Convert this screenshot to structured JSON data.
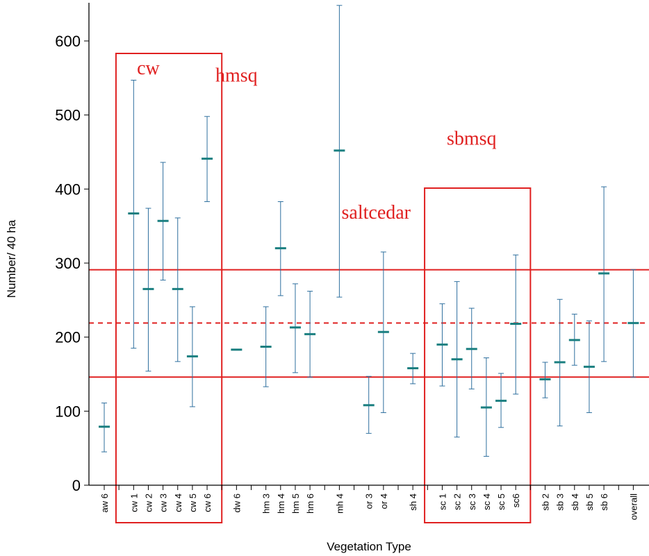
{
  "chart_data": {
    "type": "error-bar",
    "xlabel": "Vegetation Type",
    "ylabel": "Number/ 40 ha",
    "ylim": [
      0,
      650
    ],
    "yticks": [
      0,
      100,
      200,
      300,
      400,
      500,
      600
    ],
    "grid": false,
    "categories": [
      "aw 6",
      "cw 1",
      "cw 2",
      "cw 3",
      "cw 4",
      "cw 5",
      "cw 6",
      "dw 6",
      "hm 3",
      "hm 4",
      "hm 5",
      "hm 6",
      "mh 4",
      "or 3",
      "or 4",
      "sh 4",
      "sc 1",
      "sc 2",
      "sc 3",
      "sc 4",
      "sc 5",
      "sc6",
      "sb 2",
      "sb 3",
      "sb 4",
      "sb 5",
      "sb 6",
      "overall"
    ],
    "slots": [
      0,
      2,
      3,
      4,
      5,
      6,
      7,
      9,
      11,
      12,
      13,
      14,
      16,
      18,
      19,
      21,
      23,
      24,
      25,
      26,
      27,
      28,
      30,
      31,
      32,
      33,
      34,
      36
    ],
    "n_slots": 37,
    "mean": [
      79,
      367,
      265,
      357,
      265,
      174,
      441,
      183,
      187,
      320,
      213,
      204,
      452,
      108,
      207,
      158,
      190,
      170,
      184,
      105,
      114,
      218,
      143,
      166,
      196,
      160,
      286,
      219
    ],
    "lower": [
      45,
      185,
      154,
      277,
      167,
      106,
      383,
      null,
      133,
      256,
      152,
      146,
      254,
      70,
      98,
      137,
      134,
      65,
      130,
      39,
      78,
      123,
      118,
      80,
      162,
      98,
      167,
      146
    ],
    "upper": [
      111,
      547,
      374,
      436,
      361,
      241,
      498,
      null,
      241,
      383,
      272,
      262,
      648,
      147,
      315,
      178,
      245,
      275,
      239,
      172,
      151,
      311,
      166,
      251,
      231,
      222,
      403,
      291
    ],
    "reference_lines": {
      "mean": 219,
      "lower": 146,
      "upper": 291
    },
    "group_boxes": [
      {
        "label": "cw",
        "first": 1,
        "last": 6
      },
      {
        "label": "saltcedar",
        "first": 16,
        "last": 21
      }
    ],
    "group_labels": [
      {
        "text": "cw",
        "near": 3,
        "y": 555
      },
      {
        "text": "hmsq",
        "near": 9,
        "y": 545
      },
      {
        "text": "saltcedar",
        "near": 18.5,
        "y": 360
      },
      {
        "text": "sbmsq",
        "near": 25,
        "y": 460
      }
    ],
    "colors": {
      "error_bar": "#2e6f9e",
      "mean_marker": "#1a7f80",
      "reference": "#e02020",
      "annotation": "#e02020"
    }
  }
}
